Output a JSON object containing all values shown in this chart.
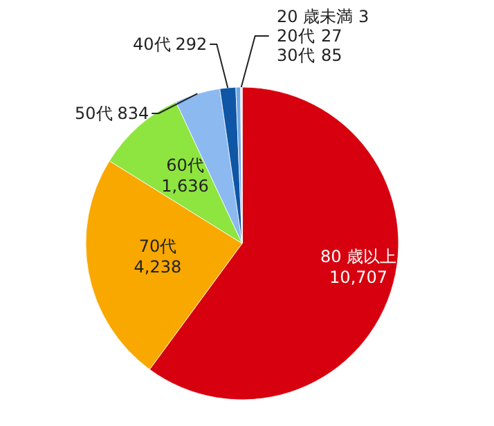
{
  "chart_data": {
    "type": "pie",
    "categories": [
      "80 歳以上",
      "70代",
      "60代",
      "50代",
      "40代",
      "30代",
      "20代",
      "20 歳未満"
    ],
    "values": [
      10707,
      4238,
      1636,
      834,
      292,
      85,
      27,
      3
    ],
    "colors": [
      "#d7000f",
      "#f9a800",
      "#8ee53f",
      "#8bb9f0",
      "#0f56a6",
      "#6fa8e8",
      "#c9dcf3",
      "#f2b8b8"
    ],
    "value_labels": [
      "10,707",
      "4,238",
      "1,636",
      "834",
      "292",
      "85",
      "27",
      "3"
    ]
  }
}
